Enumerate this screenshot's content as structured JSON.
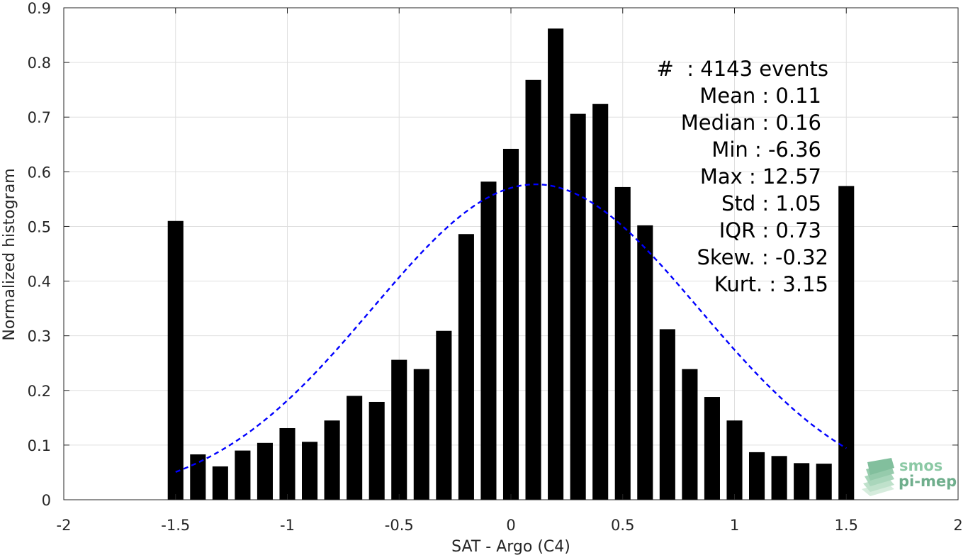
{
  "chart_data": {
    "type": "bar",
    "xlabel": "SAT - Argo (C4)",
    "ylabel": "Normalized histogram",
    "xlim": [
      -2,
      2
    ],
    "ylim": [
      0,
      0.9
    ],
    "xticks": [
      "-2",
      "-1.5",
      "-1",
      "-0.5",
      "0",
      "0.5",
      "1",
      "1.5",
      "2"
    ],
    "xtick_values": [
      -2,
      -1.5,
      -1,
      -0.5,
      0,
      0.5,
      1,
      1.5,
      2
    ],
    "yticks": [
      "0",
      "0.1",
      "0.2",
      "0.3",
      "0.4",
      "0.5",
      "0.6",
      "0.7",
      "0.8",
      "0.9"
    ],
    "ytick_values": [
      0,
      0.1,
      0.2,
      0.3,
      0.4,
      0.5,
      0.6,
      0.7,
      0.8,
      0.9
    ],
    "grid": true,
    "bar_color": "#000000",
    "bars": {
      "x": [
        -1.5,
        -1.4,
        -1.3,
        -1.2,
        -1.1,
        -1.0,
        -0.9,
        -0.8,
        -0.7,
        -0.6,
        -0.5,
        -0.4,
        -0.3,
        -0.2,
        -0.1,
        0.0,
        0.1,
        0.2,
        0.3,
        0.4,
        0.5,
        0.6,
        0.7,
        0.8,
        0.9,
        1.0,
        1.1,
        1.2,
        1.3,
        1.4,
        1.5
      ],
      "values": [
        0.51,
        0.083,
        0.061,
        0.09,
        0.104,
        0.131,
        0.106,
        0.145,
        0.19,
        0.179,
        0.256,
        0.239,
        0.309,
        0.486,
        0.582,
        0.642,
        0.768,
        0.862,
        0.706,
        0.724,
        0.572,
        0.502,
        0.312,
        0.239,
        0.188,
        0.145,
        0.087,
        0.08,
        0.067,
        0.066,
        0.574
      ],
      "bin_width": 0.07
    },
    "fit_curve": {
      "style": "dashed",
      "color": "#0000ff",
      "mean": 0.11,
      "std": 0.73,
      "peak": 0.577,
      "x_range": [
        -1.5,
        1.5
      ]
    },
    "stats": {
      "events": "#  : 4143 events",
      "lines": [
        "Mean : 0.11",
        "Median : 0.16",
        "Min : -6.36",
        "Max : 12.57",
        "Std : 1.05",
        "IQR : 0.73",
        "Skew. : -0.32",
        "Kurt. : 3.15"
      ]
    },
    "logo": {
      "line1": "smos",
      "line2": "pi-mep",
      "color1": "#8cc9a5",
      "color2": "#6fae8c"
    }
  }
}
